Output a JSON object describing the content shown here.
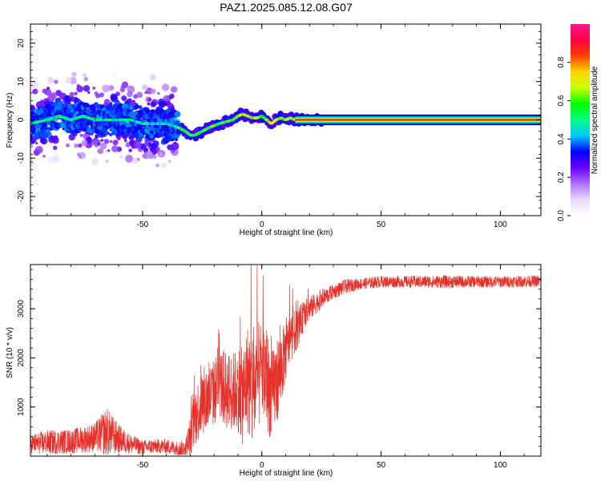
{
  "title": "PAZ1.2025.085.12.08.G07",
  "chart_data": [
    {
      "type": "heatmap",
      "xlabel": "Height of straight line (km)",
      "ylabel": "Frequency (Hz)",
      "xlim": [
        -97,
        117
      ],
      "ylim": [
        -25,
        25
      ],
      "xticks": [
        -50,
        0,
        50,
        100
      ],
      "yticks": [
        -20,
        -10,
        0,
        10,
        20
      ],
      "xtick_labels": [
        "-50",
        "0",
        "50",
        "100"
      ],
      "ytick_labels": [
        "-20",
        "-10",
        "0",
        "10",
        "20"
      ],
      "colorbar": {
        "label": "Normalized spectral amplitude",
        "range": [
          0,
          1
        ],
        "ticks": [
          0,
          0.2,
          0.4,
          0.6,
          0.8
        ],
        "tick_labels": [
          "0.0",
          "0.2",
          "0.4",
          "0.6",
          "0.8"
        ],
        "colors": [
          "#ffffff",
          "#e8d8ff",
          "#b070ff",
          "#6a00ff",
          "#0000ff",
          "#00c8ff",
          "#00ff80",
          "#00ff00",
          "#c8ff00",
          "#ffd700",
          "#ff4000",
          "#ff0040",
          "#ff1493"
        ]
      },
      "ridge": {
        "x": [
          -97,
          -90,
          -85,
          -80,
          -75,
          -70,
          -65,
          -60,
          -55,
          -50,
          -45,
          -40,
          -35,
          -32,
          -30,
          -28,
          -25,
          -22,
          -20,
          -18,
          -15,
          -12,
          -10,
          -8,
          -6,
          -4,
          -2,
          0,
          2,
          4,
          6,
          8,
          10,
          12,
          14,
          20,
          30,
          50,
          80,
          117
        ],
        "freq": [
          -1,
          0,
          1,
          0,
          1,
          0,
          0,
          0,
          0,
          -1,
          -1,
          -1,
          -2,
          -3,
          -4,
          -4,
          -3,
          -2,
          -1.5,
          -1,
          -0.5,
          0,
          1,
          1.5,
          1,
          0.5,
          0.5,
          1,
          0,
          -1,
          0,
          0.5,
          0,
          0.5,
          0,
          0,
          0,
          0,
          0,
          0
        ]
      },
      "scatter_extent_x": [
        -97,
        -35
      ],
      "scatter_spread_hz": 10
    },
    {
      "type": "line",
      "xlabel": "Height of straight line (km)",
      "ylabel": "SNR (10 * v/v)",
      "xlim": [
        -97,
        117
      ],
      "ylim": [
        0,
        3900
      ],
      "xticks": [
        -50,
        0,
        50,
        100
      ],
      "yticks": [
        1000,
        2000,
        3000
      ],
      "xtick_labels": [
        "-50",
        "0",
        "50",
        "100"
      ],
      "ytick_labels": [
        "1000",
        "2000",
        "3000"
      ],
      "color": "#e8302a",
      "envelope": {
        "x": [
          -97,
          -90,
          -80,
          -70,
          -65,
          -60,
          -55,
          -50,
          -45,
          -40,
          -35,
          -32,
          -30,
          -28,
          -25,
          -22,
          -20,
          -18,
          -15,
          -12,
          -10,
          -8,
          -6,
          -4,
          -2,
          0,
          2,
          4,
          6,
          8,
          10,
          12,
          15,
          18,
          20,
          25,
          30,
          35,
          40,
          50,
          60,
          70,
          80,
          90,
          100,
          110,
          117
        ],
        "base": [
          250,
          280,
          300,
          380,
          500,
          350,
          250,
          180,
          200,
          200,
          150,
          150,
          400,
          800,
          1100,
          1200,
          1300,
          1500,
          1350,
          1300,
          1400,
          1200,
          1600,
          1300,
          1500,
          1800,
          1600,
          1200,
          1500,
          1800,
          2100,
          2400,
          2600,
          2900,
          3000,
          3200,
          3350,
          3450,
          3500,
          3550,
          3550,
          3550,
          3550,
          3550,
          3550,
          3560,
          3560
        ],
        "amp": [
          200,
          250,
          250,
          300,
          500,
          300,
          200,
          150,
          150,
          150,
          150,
          200,
          400,
          600,
          700,
          700,
          700,
          700,
          800,
          800,
          900,
          1000,
          1100,
          1300,
          1200,
          1000,
          1100,
          900,
          900,
          800,
          600,
          500,
          400,
          300,
          250,
          200,
          150,
          150,
          120,
          120,
          120,
          130,
          130,
          120,
          120,
          120,
          120
        ]
      }
    }
  ]
}
